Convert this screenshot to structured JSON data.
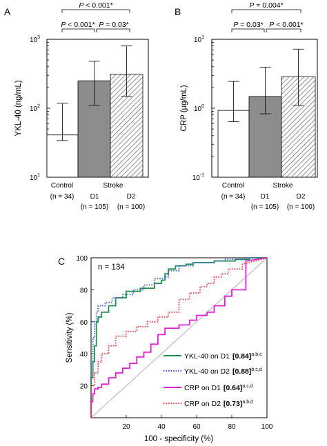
{
  "chart_data": [
    {
      "panel": "A",
      "type": "bar",
      "yscale": "log",
      "ylim": [
        10,
        1000
      ],
      "ylabel": "YKL-40 (ng/mL)",
      "yticks": [
        {
          "value": 10,
          "base": "10",
          "exp": "1"
        },
        {
          "value": 100,
          "base": "10",
          "exp": "2"
        },
        {
          "value": 1000,
          "base": "10",
          "exp": "3"
        }
      ],
      "group_labels": [
        "Control",
        "Stroke"
      ],
      "categories": [
        "Control",
        "D1",
        "D2"
      ],
      "category_labels": [
        {
          "name": "",
          "n": "(n = 34)"
        },
        {
          "name": "D1",
          "n": "(n = 105)"
        },
        {
          "name": "D2",
          "n": "(n = 100)"
        }
      ],
      "bars": [
        {
          "value": 41,
          "err_low": 34,
          "err_high": 118,
          "fill": "white"
        },
        {
          "value": 250,
          "err_low": 110,
          "err_high": 480,
          "fill": "gray"
        },
        {
          "value": 310,
          "err_low": 148,
          "err_high": 800,
          "fill": "hatched"
        }
      ],
      "brackets": [
        {
          "from": 1,
          "to": 2,
          "p": "P",
          "text": " < 0.001*"
        },
        {
          "from": 2,
          "to": 3,
          "p": "P",
          "text": " = 0.03*"
        },
        {
          "from": 1,
          "to": 3,
          "p": "P",
          "text": " < 0.001*"
        }
      ]
    },
    {
      "panel": "B",
      "type": "bar",
      "yscale": "log",
      "ylim": [
        0.1,
        10
      ],
      "ylabel": "CRP (μg/mL)",
      "yticks": [
        {
          "value": 0.1,
          "base": "10",
          "exp": "-1"
        },
        {
          "value": 1,
          "base": "10",
          "exp": "0"
        },
        {
          "value": 10,
          "base": "10",
          "exp": "1"
        }
      ],
      "group_labels": [
        "Control",
        "Stroke"
      ],
      "categories": [
        "Control",
        "D1",
        "D2"
      ],
      "category_labels": [
        {
          "name": "",
          "n": "(n = 34)"
        },
        {
          "name": "D1",
          "n": "(n = 105)"
        },
        {
          "name": "D2",
          "n": "(n = 100)"
        }
      ],
      "bars": [
        {
          "value": 0.93,
          "err_low": 0.64,
          "err_high": 2.45,
          "fill": "white"
        },
        {
          "value": 1.48,
          "err_low": 0.83,
          "err_high": 3.95,
          "fill": "gray"
        },
        {
          "value": 2.85,
          "err_low": 1.1,
          "err_high": 7.2,
          "fill": "hatched"
        }
      ],
      "brackets": [
        {
          "from": 1,
          "to": 2,
          "p": "P",
          "text": " = 0.03*"
        },
        {
          "from": 2,
          "to": 3,
          "p": "P",
          "text": " < 0.001*"
        },
        {
          "from": 1,
          "to": 3,
          "p": "P",
          "text": " = 0.004*"
        }
      ]
    },
    {
      "panel": "C",
      "type": "line",
      "xlabel": "100 - specificity (%)",
      "ylabel": "Sensitivity (%)",
      "xlim": [
        0,
        100
      ],
      "ylim": [
        0,
        100
      ],
      "xticks": [
        20,
        40,
        60,
        80,
        100
      ],
      "yticks": [
        20,
        40,
        60,
        80,
        100
      ],
      "annotation": "n = 134",
      "diagonal": true,
      "series": [
        {
          "name": "YKL-40 on D1",
          "auc": "[0.84]",
          "sup": "a,b,c",
          "color": "#1f8f4e",
          "style": "solid",
          "x": [
            0,
            0,
            1,
            1,
            2,
            2,
            3,
            3,
            4,
            4,
            6,
            6,
            10,
            10,
            14,
            14,
            20,
            20,
            28,
            28,
            36,
            36,
            40,
            40,
            42,
            42,
            44,
            44,
            48,
            48,
            54,
            54,
            58,
            58,
            70,
            70,
            82,
            82,
            90,
            90,
            100
          ],
          "y": [
            0,
            25,
            25,
            35,
            35,
            45,
            45,
            60,
            60,
            63,
            63,
            66,
            66,
            70,
            70,
            75,
            75,
            79,
            79,
            81,
            81,
            84,
            84,
            86,
            86,
            90,
            90,
            93,
            93,
            95,
            95,
            96,
            96,
            97,
            97,
            98,
            98,
            99,
            99,
            100,
            100
          ]
        },
        {
          "name": "YKL-40 on D2",
          "auc": "[0.88]",
          "sup": "b,c,d",
          "color": "#3a5bd9",
          "style": "dotted",
          "x": [
            0,
            0,
            1,
            1,
            2,
            2,
            3,
            3,
            4,
            4,
            8,
            8,
            12,
            12,
            18,
            18,
            24,
            24,
            30,
            30,
            36,
            36,
            42,
            42,
            44,
            44,
            50,
            50,
            58,
            58,
            70,
            70,
            76,
            76,
            88,
            88,
            100
          ],
          "y": [
            0,
            35,
            35,
            50,
            50,
            60,
            60,
            66,
            66,
            70,
            70,
            72,
            72,
            75,
            75,
            77,
            77,
            80,
            80,
            83,
            83,
            87,
            87,
            88,
            88,
            92,
            92,
            95,
            95,
            97,
            97,
            98,
            98,
            99,
            99,
            100,
            100
          ]
        },
        {
          "name": "CRP on D1",
          "auc": "[0.64]",
          "sup": "a,c,d",
          "color": "#e020d0",
          "style": "solid",
          "x": [
            0,
            0,
            1,
            1,
            2,
            2,
            4,
            4,
            6,
            6,
            10,
            10,
            14,
            14,
            18,
            18,
            22,
            22,
            26,
            26,
            30,
            30,
            34,
            34,
            38,
            38,
            42,
            42,
            50,
            50,
            56,
            56,
            60,
            60,
            66,
            66,
            70,
            70,
            76,
            76,
            80,
            80,
            88,
            88,
            100
          ],
          "y": [
            0,
            10,
            10,
            15,
            15,
            18,
            18,
            19,
            19,
            21,
            21,
            25,
            25,
            28,
            28,
            31,
            31,
            34,
            34,
            38,
            38,
            41,
            41,
            46,
            46,
            52,
            52,
            56,
            56,
            58,
            58,
            61,
            61,
            64,
            64,
            66,
            66,
            70,
            70,
            76,
            76,
            80,
            80,
            98,
            100
          ]
        },
        {
          "name": "CRP on D2",
          "auc": "[0.73]",
          "sup": "a,b,d",
          "color": "#ee3333",
          "style": "dotted",
          "x": [
            0,
            0,
            2,
            2,
            4,
            4,
            6,
            6,
            10,
            10,
            14,
            14,
            20,
            20,
            26,
            26,
            32,
            32,
            38,
            38,
            44,
            44,
            50,
            50,
            56,
            56,
            62,
            62,
            66,
            66,
            70,
            70,
            74,
            74,
            78,
            78,
            86,
            86,
            100
          ],
          "y": [
            0,
            20,
            20,
            28,
            28,
            35,
            35,
            40,
            40,
            45,
            45,
            51,
            51,
            54,
            54,
            57,
            57,
            60,
            60,
            63,
            63,
            66,
            66,
            74,
            74,
            78,
            78,
            82,
            82,
            84,
            84,
            88,
            88,
            90,
            90,
            93,
            93,
            96,
            100
          ]
        }
      ]
    }
  ]
}
